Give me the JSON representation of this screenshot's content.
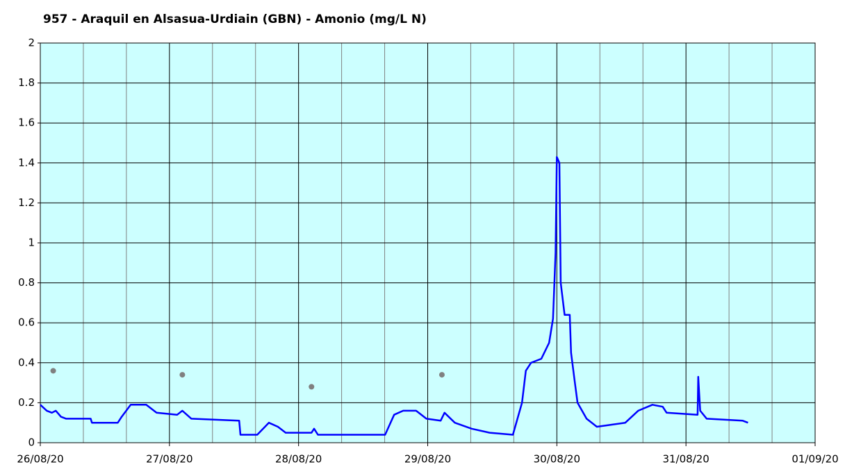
{
  "chart_data": {
    "type": "line",
    "title": "957 - Araquil en Alsasua-Urdiain (GBN) - Amonio (mg/L N)",
    "xlim": [
      0,
      6
    ],
    "xticks": [
      {
        "value": 0,
        "label": "26/08/20"
      },
      {
        "value": 1,
        "label": "27/08/20"
      },
      {
        "value": 2,
        "label": "28/08/20"
      },
      {
        "value": 3,
        "label": "29/08/20"
      },
      {
        "value": 4,
        "label": "30/08/20"
      },
      {
        "value": 5,
        "label": "31/08/20"
      },
      {
        "value": 6,
        "label": "01/09/20"
      }
    ],
    "x_minor_divisions": 3,
    "ylim": [
      0,
      2
    ],
    "yticks": [
      0,
      0.2,
      0.4,
      0.6,
      0.8,
      1,
      1.2,
      1.4,
      1.6,
      1.8,
      2
    ],
    "grid": true,
    "background": "#ccffff",
    "series": [
      {
        "color": "#0000ff",
        "x": [
          0,
          0.05,
          0.09,
          0.12,
          0.16,
          0.2,
          0.39,
          0.4,
          0.6,
          0.63,
          0.7,
          0.82,
          0.9,
          1.06,
          1.1,
          1.17,
          1.54,
          1.55,
          1.68,
          1.77,
          1.84,
          1.9,
          2.1,
          2.12,
          2.15,
          2.67,
          2.74,
          2.81,
          2.91,
          2.99,
          3.1,
          3.13,
          3.21,
          3.34,
          3.48,
          3.66,
          3.73,
          3.76,
          3.8,
          3.88,
          3.94,
          3.97,
          3.99,
          4.0,
          4.02,
          4.03,
          4.06,
          4.1,
          4.11,
          4.14,
          4.16,
          4.23,
          4.31,
          4.42,
          4.53,
          4.63,
          4.74,
          4.82,
          4.85,
          5.09,
          5.095,
          5.11,
          5.16,
          5.44,
          5.48
        ],
        "values": [
          0.19,
          0.16,
          0.15,
          0.16,
          0.13,
          0.12,
          0.12,
          0.1,
          0.1,
          0.13,
          0.19,
          0.19,
          0.15,
          0.14,
          0.16,
          0.12,
          0.11,
          0.04,
          0.04,
          0.1,
          0.08,
          0.05,
          0.05,
          0.07,
          0.04,
          0.04,
          0.14,
          0.16,
          0.16,
          0.12,
          0.11,
          0.15,
          0.1,
          0.07,
          0.05,
          0.04,
          0.2,
          0.36,
          0.4,
          0.42,
          0.5,
          0.62,
          0.95,
          1.43,
          1.4,
          0.8,
          0.64,
          0.64,
          0.45,
          0.3,
          0.2,
          0.12,
          0.08,
          0.09,
          0.1,
          0.16,
          0.19,
          0.18,
          0.15,
          0.14,
          0.33,
          0.16,
          0.12,
          0.11,
          0.1
        ]
      },
      {
        "color": "#808080",
        "marker": true,
        "x": [
          0.1,
          1.1,
          2.1,
          3.11
        ],
        "values": [
          0.36,
          0.34,
          0.28,
          0.34
        ]
      }
    ]
  }
}
